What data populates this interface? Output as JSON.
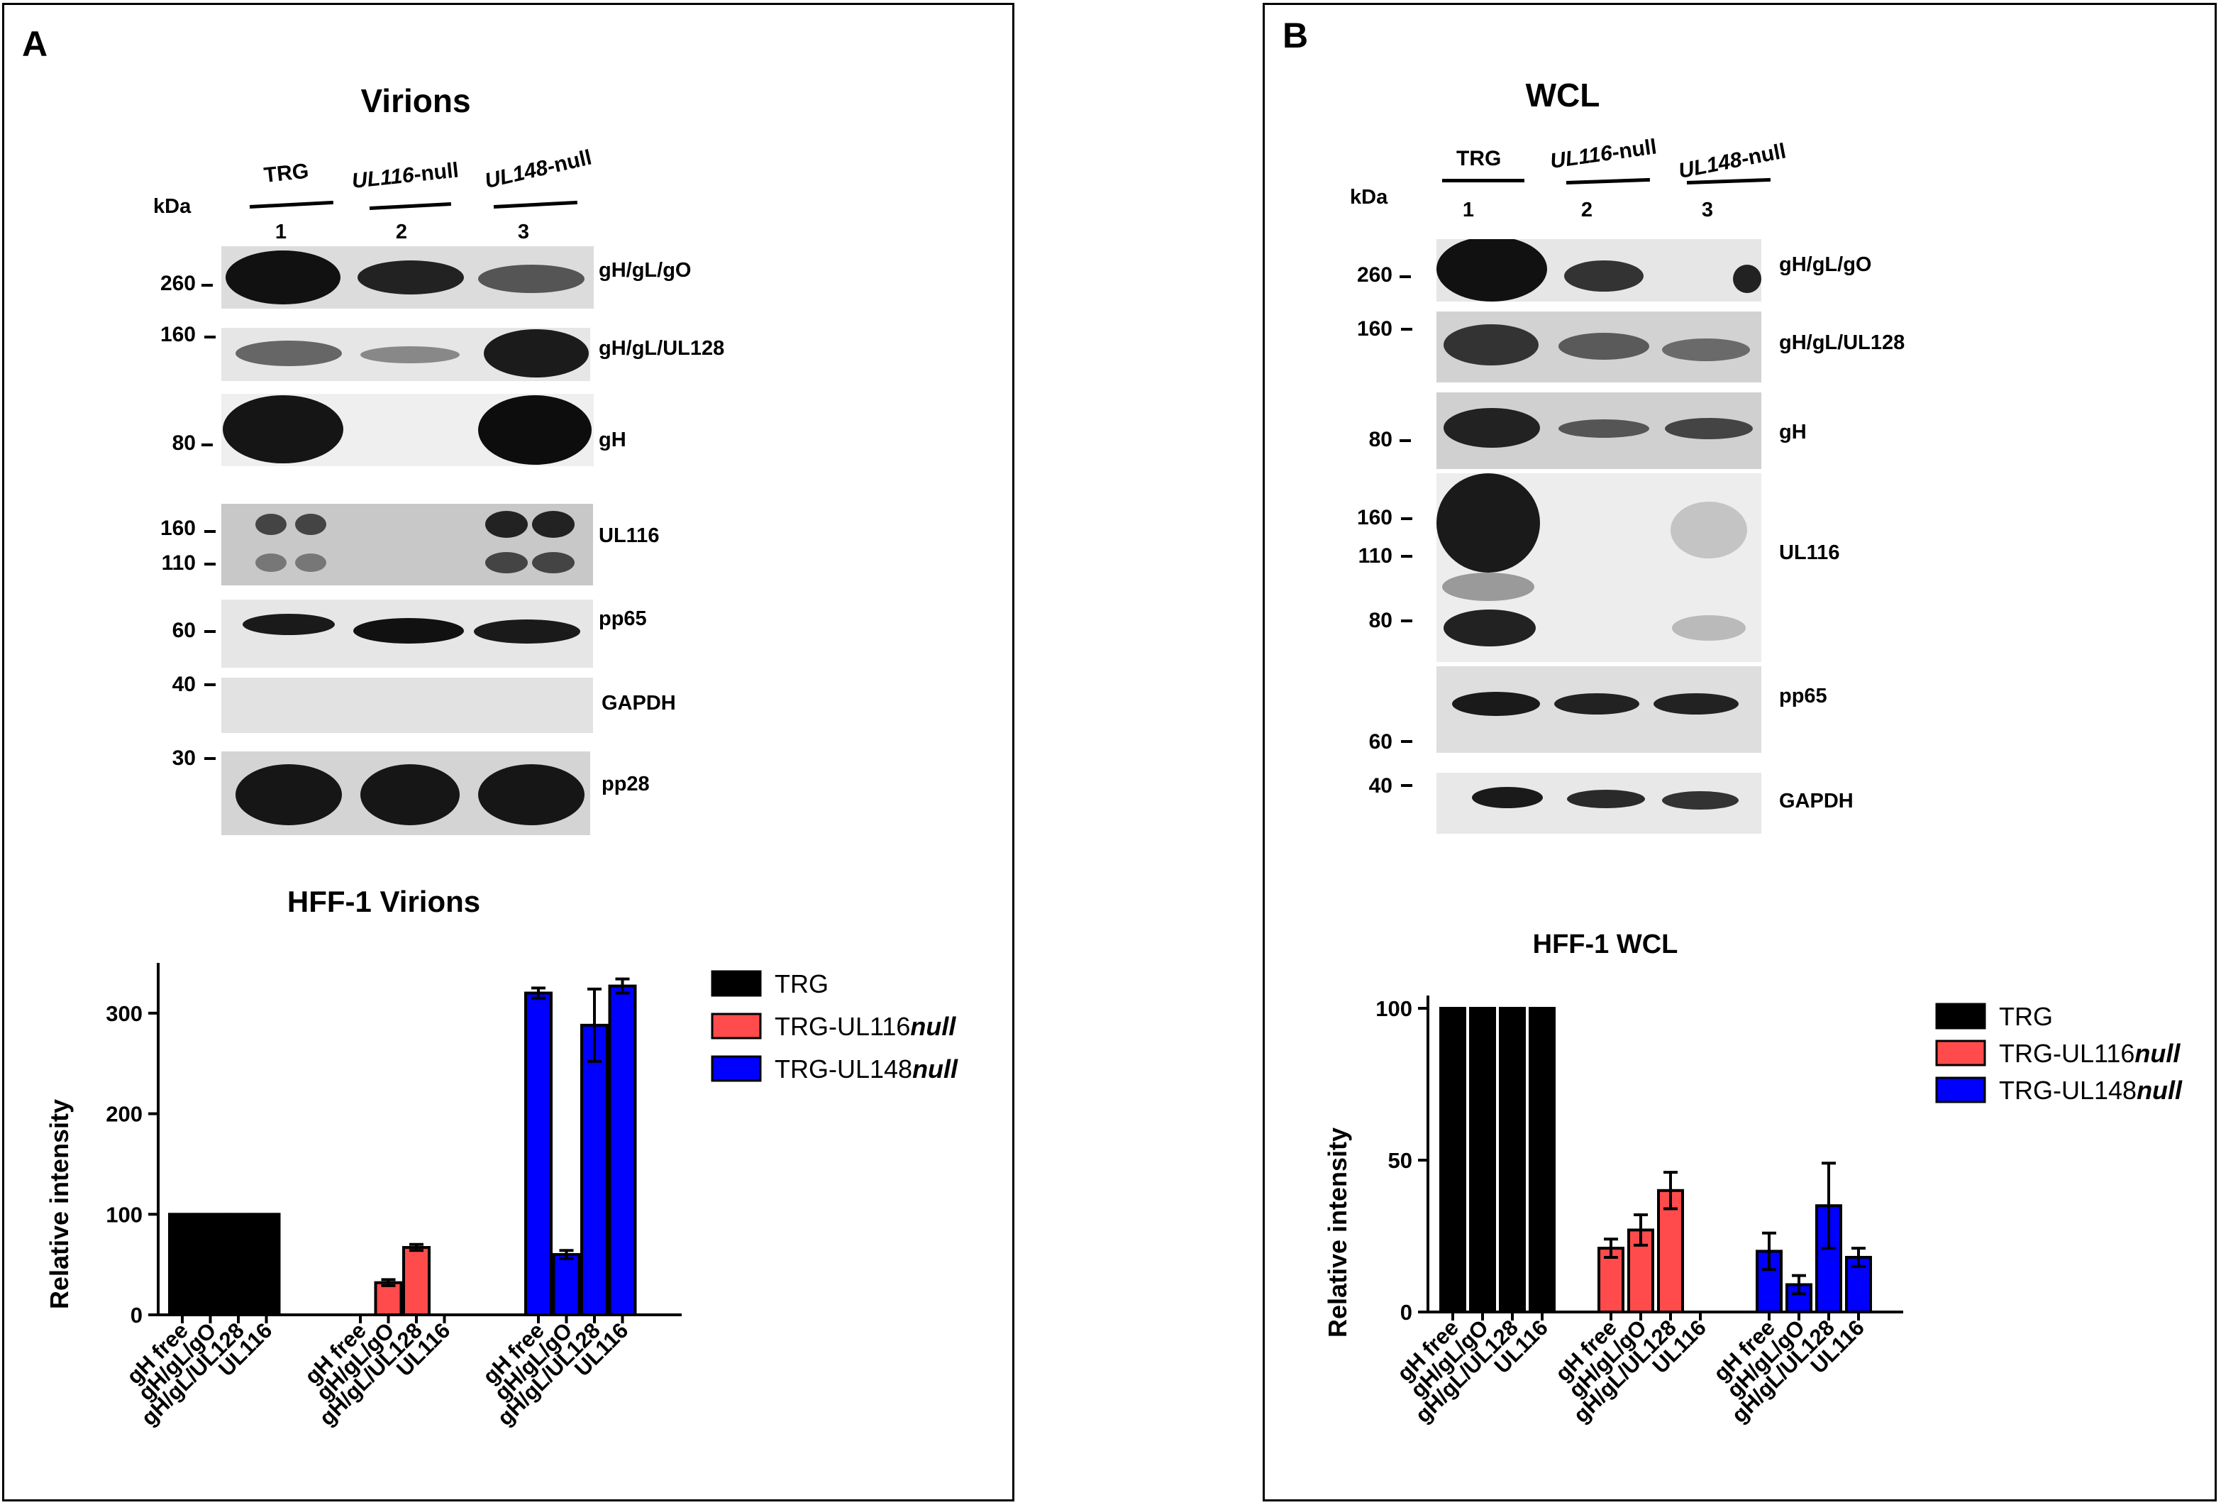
{
  "panel_a": {
    "letter": "A",
    "title": "Virions",
    "kda": "kDa",
    "groups": [
      "TRG",
      "UL116",
      "-null",
      "UL148",
      "-null"
    ],
    "lanes": [
      "1",
      "2",
      "3"
    ],
    "markers": [
      "260",
      "160",
      "80",
      "160",
      "110",
      "60",
      "40",
      "30"
    ],
    "blot_labels": [
      "gH/gL/gO",
      "gH/gL/UL128",
      "gH",
      "UL116",
      "pp65",
      "GAPDH",
      "pp28"
    ]
  },
  "panel_b": {
    "letter": "B",
    "title": "WCL",
    "kda": "kDa",
    "groups": [
      "TRG",
      "UL116",
      "-null",
      "UL148",
      "-null"
    ],
    "lanes": [
      "1",
      "2",
      "3"
    ],
    "markers": [
      "260",
      "160",
      "80",
      "160",
      "110",
      "80",
      "60",
      "40"
    ],
    "blot_labels": [
      "gH/gL/gO",
      "gH/gL/UL128",
      "gH",
      "UL116",
      "pp65",
      "GAPDH"
    ]
  },
  "chart_data": [
    {
      "type": "bar",
      "title": "HFF-1 Virions",
      "ylabel": "Relative intensity",
      "xlabel": "",
      "ylim": [
        0,
        350
      ],
      "yticks": [
        0,
        100,
        200,
        300
      ],
      "legend_position": "top-right",
      "categories": [
        "gH free",
        "gH/gL/gO",
        "gH/gL/UL128",
        "UL116"
      ],
      "series": [
        {
          "name": "TRG",
          "name_italic": "",
          "color": "#000000",
          "values": [
            100,
            100,
            100,
            100
          ],
          "errors": [
            0,
            0,
            0,
            0
          ]
        },
        {
          "name": "TRG-UL116",
          "name_italic": "null",
          "color": "#ff4b4b",
          "values": [
            0,
            32,
            67,
            0
          ],
          "errors": [
            0,
            3,
            3,
            0
          ]
        },
        {
          "name": "TRG-UL148",
          "name_italic": "null",
          "color": "#0000ff",
          "values": [
            320,
            60,
            288,
            327
          ],
          "errors": [
            5,
            4,
            36,
            7
          ]
        }
      ]
    },
    {
      "type": "bar",
      "title": "HFF-1 WCL",
      "ylabel": "Relative intensity",
      "xlabel": "",
      "ylim": [
        0,
        100
      ],
      "yticks": [
        0,
        50,
        100
      ],
      "legend_position": "top-right",
      "categories": [
        "gH free",
        "gH/gL/gO",
        "gH/gL/UL128",
        "UL116"
      ],
      "series": [
        {
          "name": "TRG",
          "name_italic": "",
          "color": "#000000",
          "values": [
            100,
            100,
            100,
            100
          ],
          "errors": [
            0,
            0,
            0,
            0
          ]
        },
        {
          "name": "TRG-UL116",
          "name_italic": "null",
          "color": "#ff4b4b",
          "values": [
            21,
            27,
            40,
            0
          ],
          "errors": [
            3,
            5,
            6,
            0
          ]
        },
        {
          "name": "TRG-UL148",
          "name_italic": "null",
          "color": "#0000ff",
          "values": [
            20,
            9,
            35,
            18
          ],
          "errors": [
            6,
            3,
            14,
            3
          ]
        }
      ]
    }
  ]
}
